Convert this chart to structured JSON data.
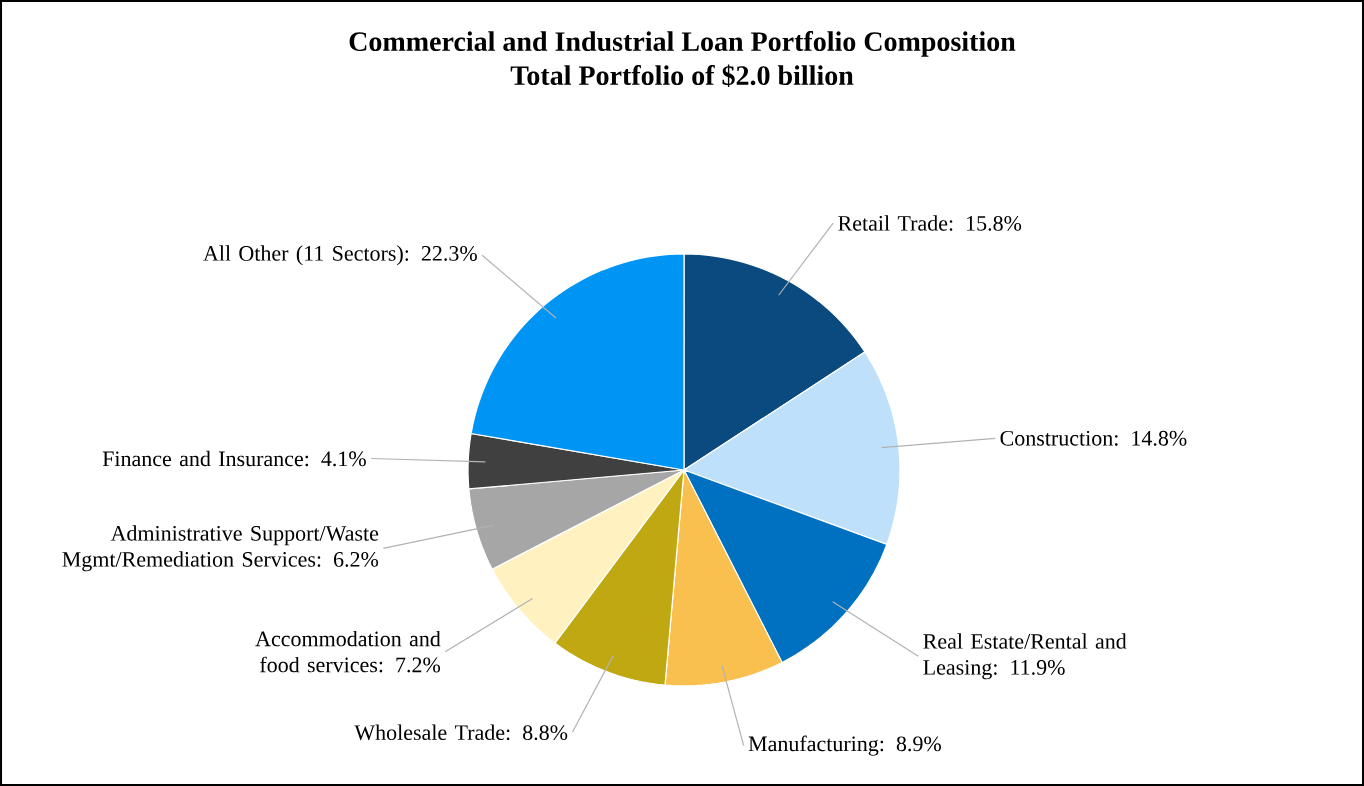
{
  "chart_data": {
    "type": "pie",
    "title": "Commercial and Industrial Loan Portfolio Composition",
    "subtitle": "Total Portfolio of $2.0 billion",
    "categories": [
      "Retail Trade: 15.8%",
      "Construction: 14.8%",
      "Real Estate/Rental and Leasing: 11.9%",
      "Manufacturing: 8.9%",
      "Wholesale Trade: 8.8%",
      "Accommodation and food services: 7.2%",
      "Administrative Support/Waste Mgmt/Remediation Services: 6.2%",
      "Finance and Insurance: 4.1%",
      "All Other (11 Sectors): 22.3%"
    ],
    "values": [
      15.8,
      14.8,
      11.9,
      8.9,
      8.8,
      7.2,
      6.2,
      4.1,
      22.3
    ],
    "colors": [
      "#0b4a7f",
      "#bfe0fb",
      "#0070c0",
      "#f9c04f",
      "#c0a812",
      "#fff2c0",
      "#a6a6a6",
      "#404040",
      "#0094f5"
    ]
  }
}
